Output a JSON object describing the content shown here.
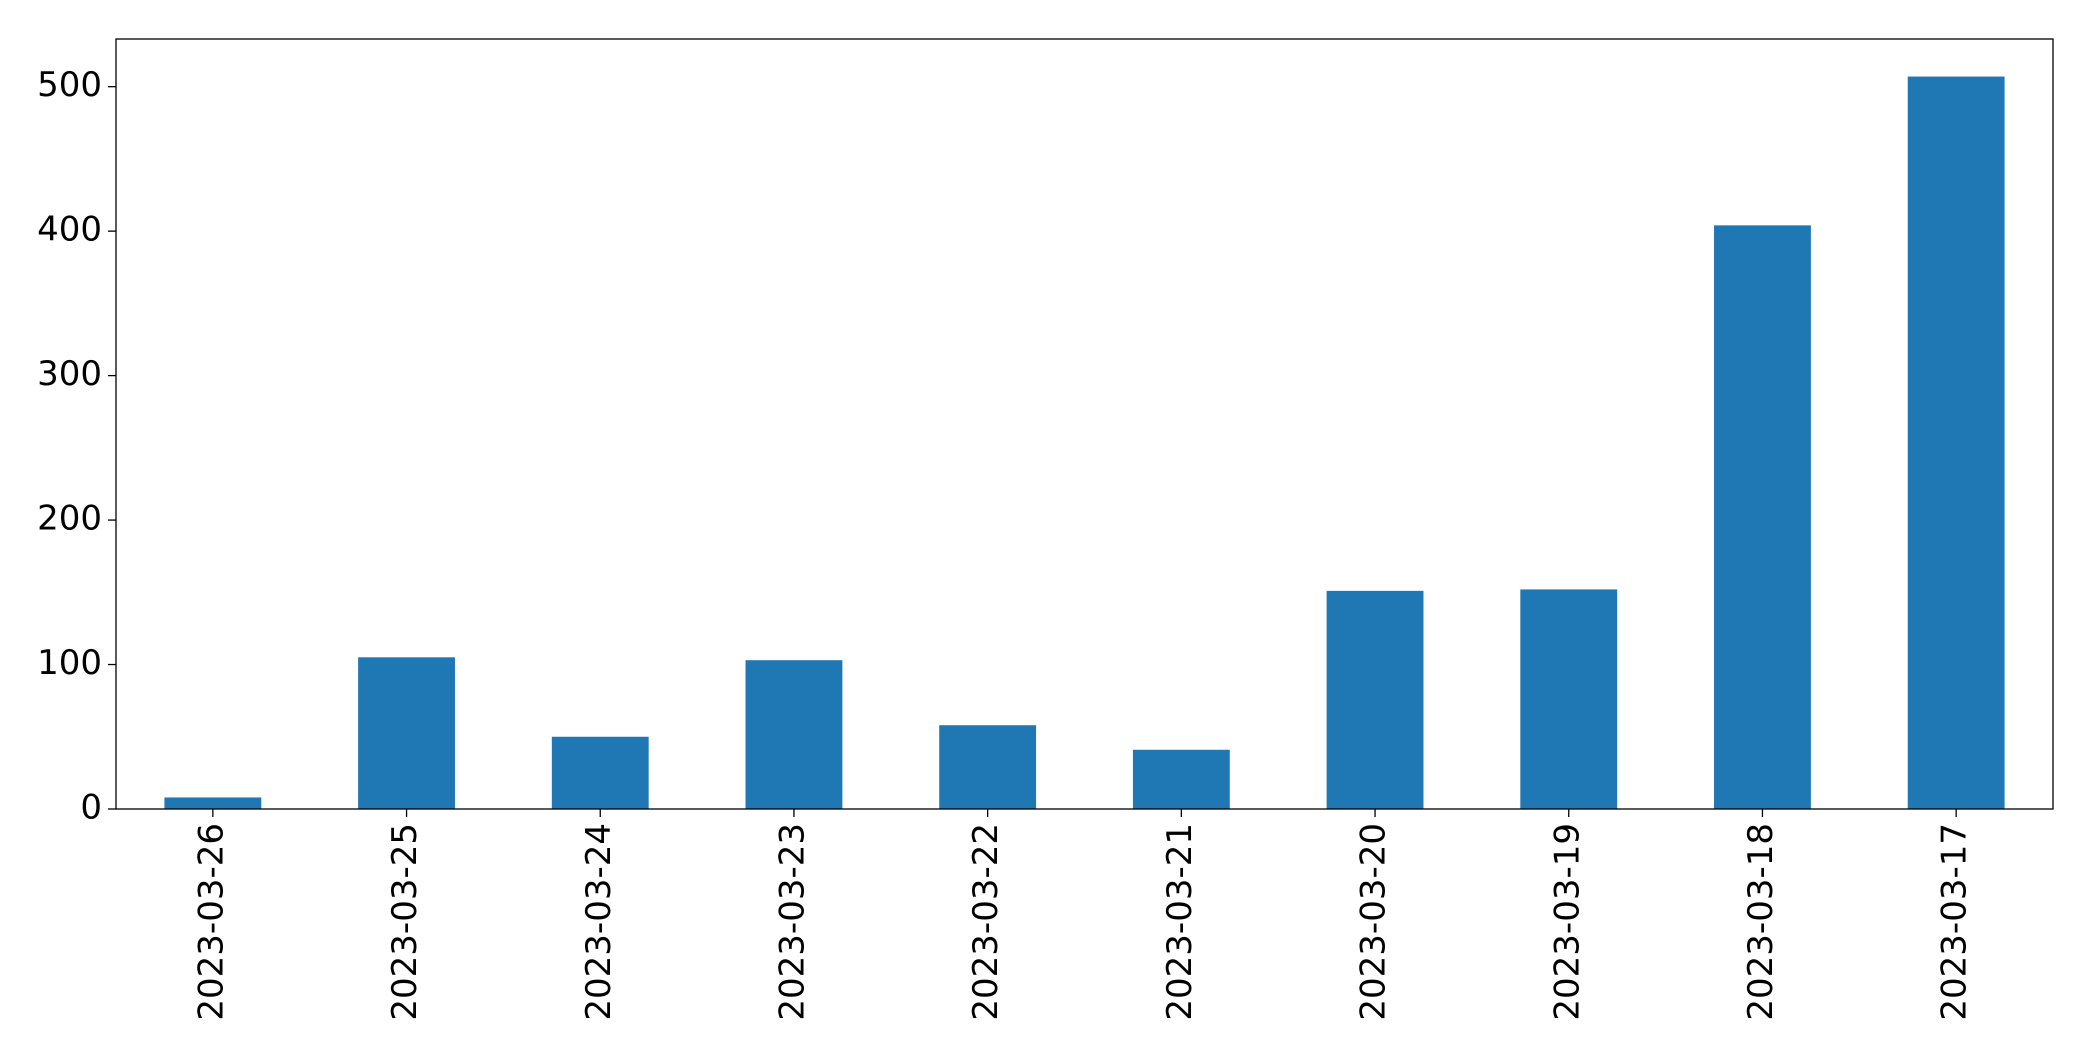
{
  "chart_data": {
    "type": "bar",
    "categories": [
      "2023-03-26",
      "2023-03-25",
      "2023-03-24",
      "2023-03-23",
      "2023-03-22",
      "2023-03-21",
      "2023-03-20",
      "2023-03-19",
      "2023-03-18",
      "2023-03-17"
    ],
    "values": [
      8,
      105,
      50,
      103,
      58,
      41,
      151,
      152,
      404,
      507
    ],
    "color": "#1f77b4",
    "ylim": [
      0,
      533
    ],
    "yticks": [
      0,
      100,
      200,
      300,
      400,
      500
    ],
    "grid": false
  }
}
